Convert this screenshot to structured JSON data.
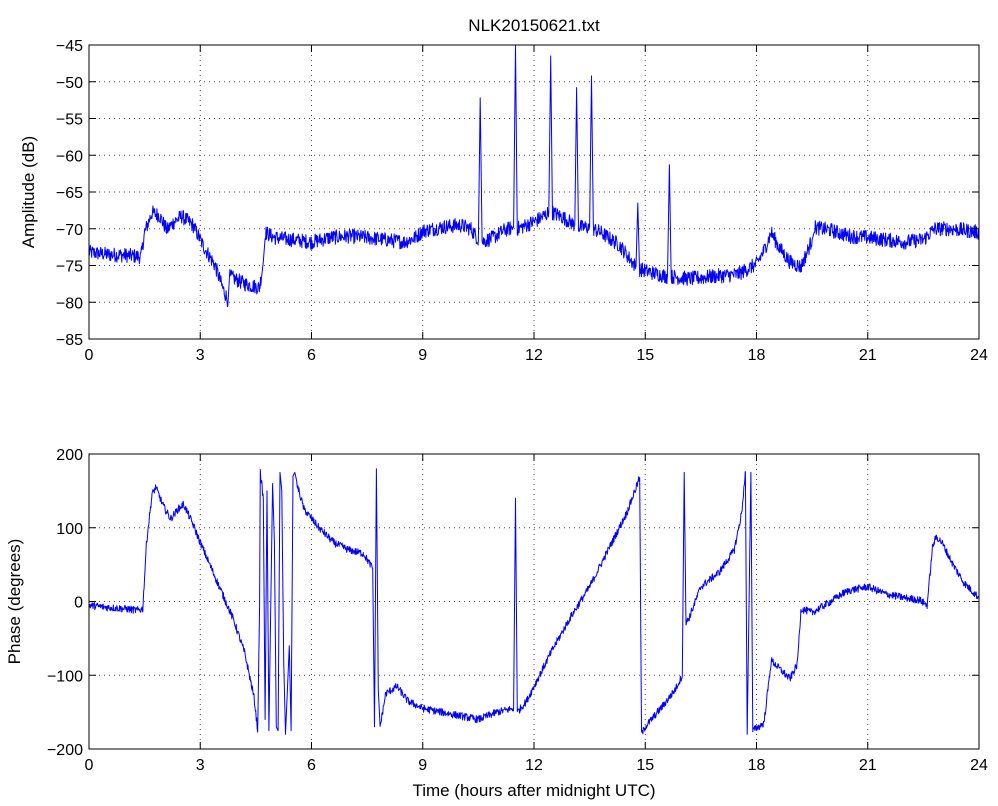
{
  "figure_title": "NLK20150621.txt",
  "colors": {
    "series": "#0000ff",
    "axes": "#000000",
    "background": "#ffffff"
  },
  "chart_data": [
    {
      "type": "line",
      "title": "NLK20150621.txt",
      "xlabel": "",
      "ylabel": "Amplitude (dB)",
      "xlim": [
        0,
        24
      ],
      "ylim": [
        -85,
        -45
      ],
      "xticks": [
        0,
        3,
        6,
        9,
        12,
        15,
        18,
        21,
        24
      ],
      "yticks": [
        -85,
        -80,
        -75,
        -70,
        -65,
        -60,
        -55,
        -50,
        -45
      ],
      "grid": true,
      "noise": 1.0,
      "series": [
        {
          "values": [
            [
              0,
              -73.2
            ],
            [
              0.5,
              -73.5
            ],
            [
              1.0,
              -73.6
            ],
            [
              1.4,
              -73.8
            ],
            [
              1.5,
              -70.5
            ],
            [
              1.7,
              -67.8
            ],
            [
              1.9,
              -68.2
            ],
            [
              2.1,
              -70.2
            ],
            [
              2.3,
              -69.0
            ],
            [
              2.5,
              -68.3
            ],
            [
              2.8,
              -69.5
            ],
            [
              3.1,
              -72.5
            ],
            [
              3.4,
              -75.0
            ],
            [
              3.6,
              -78.0
            ],
            [
              3.75,
              -79.8
            ],
            [
              3.8,
              -76.5
            ],
            [
              4.2,
              -77.5
            ],
            [
              4.6,
              -78.0
            ],
            [
              4.7,
              -74.5
            ],
            [
              4.75,
              -70.5
            ],
            [
              5.0,
              -71.2
            ],
            [
              5.5,
              -71.5
            ],
            [
              6.0,
              -71.8
            ],
            [
              6.5,
              -71.2
            ],
            [
              7.0,
              -71.0
            ],
            [
              7.5,
              -71.2
            ],
            [
              8.0,
              -71.5
            ],
            [
              8.5,
              -71.8
            ],
            [
              8.8,
              -71.2
            ],
            [
              9.0,
              -70.3
            ],
            [
              9.5,
              -69.8
            ],
            [
              10.0,
              -69.5
            ],
            [
              10.3,
              -70.0
            ],
            [
              10.5,
              -71.5
            ],
            [
              10.55,
              -52.2
            ],
            [
              10.6,
              -71.8
            ],
            [
              10.9,
              -71.2
            ],
            [
              11.2,
              -70.2
            ],
            [
              11.45,
              -69.8
            ],
            [
              11.5,
              -45.0
            ],
            [
              11.55,
              -70.0
            ],
            [
              11.8,
              -69.5
            ],
            [
              12.1,
              -68.8
            ],
            [
              12.4,
              -67.8
            ],
            [
              12.45,
              -46.5
            ],
            [
              12.5,
              -67.8
            ],
            [
              12.8,
              -68.5
            ],
            [
              13.1,
              -69.5
            ],
            [
              13.15,
              -50.8
            ],
            [
              13.2,
              -69.8
            ],
            [
              13.5,
              -69.8
            ],
            [
              13.55,
              -49.2
            ],
            [
              13.6,
              -70.0
            ],
            [
              13.8,
              -70.5
            ],
            [
              14.0,
              -71.2
            ],
            [
              14.3,
              -72.2
            ],
            [
              14.6,
              -74.2
            ],
            [
              14.75,
              -75.2
            ],
            [
              14.8,
              -66.5
            ],
            [
              14.85,
              -75.5
            ],
            [
              15.2,
              -76.0
            ],
            [
              15.6,
              -76.5
            ],
            [
              15.65,
              -61.3
            ],
            [
              15.7,
              -76.5
            ],
            [
              16.2,
              -76.8
            ],
            [
              16.8,
              -76.5
            ],
            [
              17.5,
              -76.2
            ],
            [
              18.0,
              -74.8
            ],
            [
              18.2,
              -73.0
            ],
            [
              18.4,
              -70.5
            ],
            [
              18.6,
              -72.5
            ],
            [
              18.9,
              -74.5
            ],
            [
              19.2,
              -75.2
            ],
            [
              19.5,
              -71.5
            ],
            [
              19.55,
              -69.8
            ],
            [
              20.0,
              -70.2
            ],
            [
              20.5,
              -71.0
            ],
            [
              21.0,
              -71.2
            ],
            [
              21.5,
              -71.5
            ],
            [
              22.0,
              -71.8
            ],
            [
              22.5,
              -71.5
            ],
            [
              22.8,
              -70.0
            ],
            [
              23.2,
              -70.0
            ],
            [
              23.6,
              -70.2
            ],
            [
              24,
              -70.5
            ]
          ]
        }
      ]
    },
    {
      "type": "line",
      "title": "",
      "xlabel": "Time (hours after midnight UTC)",
      "ylabel": "Phase (degrees)",
      "xlim": [
        0,
        24
      ],
      "ylim": [
        -200,
        200
      ],
      "xticks": [
        0,
        3,
        6,
        9,
        12,
        15,
        18,
        21,
        24
      ],
      "yticks": [
        -200,
        -100,
        0,
        100,
        200
      ],
      "grid": true,
      "noise": 5,
      "series": [
        {
          "values": [
            [
              0,
              -5
            ],
            [
              0.5,
              -8
            ],
            [
              1.0,
              -10
            ],
            [
              1.3,
              -12
            ],
            [
              1.45,
              -10
            ],
            [
              1.55,
              80
            ],
            [
              1.7,
              145
            ],
            [
              1.8,
              155
            ],
            [
              2.0,
              130
            ],
            [
              2.2,
              112
            ],
            [
              2.4,
              125
            ],
            [
              2.55,
              132
            ],
            [
              2.8,
              105
            ],
            [
              3.0,
              80
            ],
            [
              3.3,
              45
            ],
            [
              3.6,
              10
            ],
            [
              3.9,
              -25
            ],
            [
              4.2,
              -70
            ],
            [
              4.45,
              -130
            ],
            [
              4.55,
              -175
            ],
            [
              4.6,
              -5
            ],
            [
              4.62,
              175
            ],
            [
              4.7,
              140
            ],
            [
              4.75,
              -160
            ],
            [
              4.8,
              150
            ],
            [
              4.85,
              -175
            ],
            [
              4.95,
              160
            ],
            [
              5.0,
              80
            ],
            [
              5.05,
              -170
            ],
            [
              5.1,
              -175
            ],
            [
              5.15,
              175
            ],
            [
              5.2,
              150
            ],
            [
              5.25,
              -80
            ],
            [
              5.3,
              -180
            ],
            [
              5.4,
              -60
            ],
            [
              5.45,
              -175
            ],
            [
              5.5,
              170
            ],
            [
              5.55,
              175
            ],
            [
              5.6,
              160
            ],
            [
              5.8,
              125
            ],
            [
              6.2,
              100
            ],
            [
              6.6,
              80
            ],
            [
              7.0,
              70
            ],
            [
              7.4,
              65
            ],
            [
              7.65,
              45
            ],
            [
              7.7,
              -170
            ],
            [
              7.75,
              180
            ],
            [
              7.8,
              -120
            ],
            [
              7.85,
              -170
            ],
            [
              8.0,
              -125
            ],
            [
              8.3,
              -115
            ],
            [
              8.6,
              -135
            ],
            [
              9.0,
              -145
            ],
            [
              9.5,
              -150
            ],
            [
              10.0,
              -155
            ],
            [
              10.5,
              -160
            ],
            [
              11.0,
              -150
            ],
            [
              11.45,
              -145
            ],
            [
              11.5,
              140
            ],
            [
              11.55,
              -150
            ],
            [
              11.8,
              -135
            ],
            [
              12.0,
              -115
            ],
            [
              12.5,
              -65
            ],
            [
              13.0,
              -20
            ],
            [
              13.5,
              20
            ],
            [
              14.0,
              70
            ],
            [
              14.5,
              120
            ],
            [
              14.85,
              168
            ],
            [
              14.9,
              -180
            ],
            [
              15.0,
              -170
            ],
            [
              15.5,
              -140
            ],
            [
              15.8,
              -120
            ],
            [
              16.0,
              -100
            ],
            [
              16.05,
              175
            ],
            [
              16.1,
              -30
            ],
            [
              16.2,
              -20
            ],
            [
              16.5,
              20
            ],
            [
              17.0,
              40
            ],
            [
              17.4,
              70
            ],
            [
              17.6,
              120
            ],
            [
              17.7,
              175
            ],
            [
              17.75,
              -180
            ],
            [
              17.85,
              175
            ],
            [
              17.9,
              -175
            ],
            [
              18.2,
              -165
            ],
            [
              18.4,
              -80
            ],
            [
              18.6,
              -90
            ],
            [
              18.9,
              -105
            ],
            [
              19.1,
              -85
            ],
            [
              19.2,
              -10
            ],
            [
              19.5,
              -15
            ],
            [
              20.0,
              0
            ],
            [
              20.3,
              10
            ],
            [
              20.5,
              15
            ],
            [
              21.0,
              20
            ],
            [
              21.5,
              10
            ],
            [
              22.0,
              5
            ],
            [
              22.4,
              2
            ],
            [
              22.6,
              -5
            ],
            [
              22.75,
              75
            ],
            [
              22.85,
              88
            ],
            [
              23.0,
              80
            ],
            [
              23.3,
              50
            ],
            [
              23.6,
              25
            ],
            [
              24,
              5
            ]
          ]
        }
      ]
    }
  ]
}
